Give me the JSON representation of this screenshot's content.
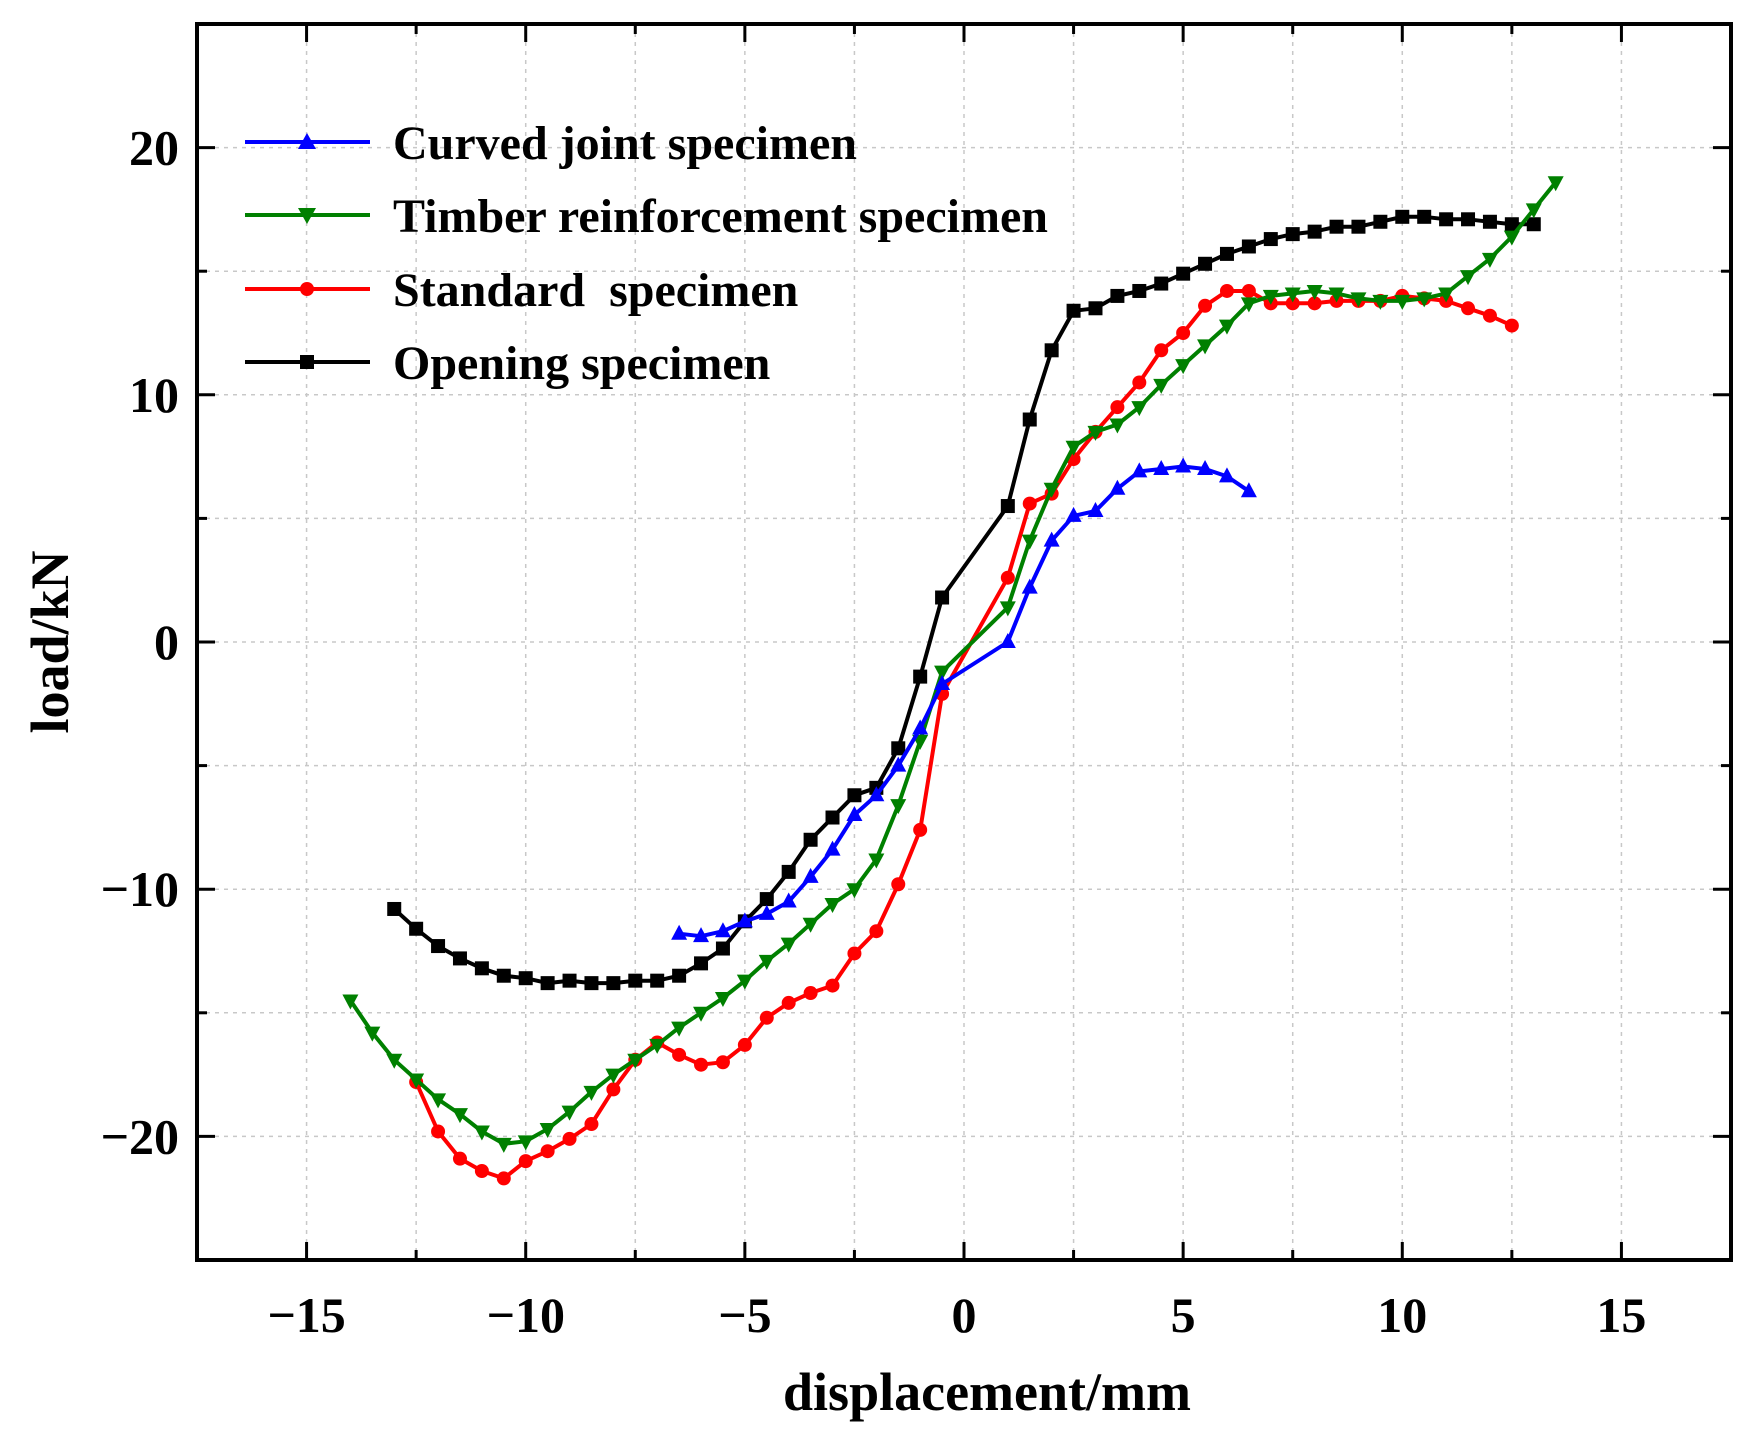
{
  "chart_data": {
    "type": "line",
    "title": "",
    "xlabel": "displacement/mm",
    "ylabel": "load/kN",
    "xlim": [
      -17.5,
      17.5
    ],
    "ylim": [
      -25,
      25
    ],
    "xticks": [
      -15,
      -10,
      -5,
      0,
      5,
      10,
      15
    ],
    "yticks": [
      -20,
      -10,
      0,
      10,
      20
    ],
    "xtick_labels": [
      "−15",
      "−10",
      "−5",
      "0",
      "5",
      "10",
      "15"
    ],
    "ytick_labels": [
      "−20",
      "−10",
      "0",
      "10",
      "20"
    ],
    "grid": true,
    "legend_position": "top-left",
    "series": [
      {
        "name": "Curved joint specimen",
        "color": "#0000ff",
        "marker": "triangle-up",
        "x": [
          -6.5,
          -6.0,
          -5.5,
          -5.0,
          -4.5,
          -4.0,
          -3.5,
          -3.0,
          -2.5,
          -2.0,
          -1.5,
          -1.0,
          -0.5,
          1.0,
          1.5,
          2.0,
          2.5,
          3.0,
          3.5,
          4.0,
          4.5,
          5.0,
          5.5,
          6.0,
          6.5
        ],
        "y": [
          -11.8,
          -11.9,
          -11.7,
          -11.3,
          -11.0,
          -10.5,
          -9.5,
          -8.4,
          -7.0,
          -6.2,
          -5.0,
          -3.5,
          -1.7,
          0.0,
          2.2,
          4.1,
          5.1,
          5.3,
          6.2,
          6.9,
          7.0,
          7.1,
          7.0,
          6.7,
          6.1
        ]
      },
      {
        "name": "Timber reinforcement specimen",
        "color": "#008000",
        "marker": "triangle-down",
        "x": [
          -14.0,
          -13.5,
          -13.0,
          -12.5,
          -12.0,
          -11.5,
          -11.0,
          -10.5,
          -10.0,
          -9.5,
          -9.0,
          -8.5,
          -8.0,
          -7.5,
          -7.0,
          -6.5,
          -6.0,
          -5.5,
          -5.0,
          -4.5,
          -4.0,
          -3.5,
          -3.0,
          -2.5,
          -2.0,
          -1.5,
          -1.0,
          -0.5,
          1.0,
          1.5,
          2.0,
          2.5,
          3.0,
          3.5,
          4.0,
          4.5,
          5.0,
          5.5,
          6.0,
          6.5,
          7.0,
          7.5,
          8.0,
          8.5,
          9.0,
          9.5,
          10.0,
          10.5,
          11.0,
          11.5,
          12.0,
          12.5,
          13.0,
          13.5
        ],
        "y": [
          -14.5,
          -15.8,
          -16.9,
          -17.7,
          -18.5,
          -19.1,
          -19.8,
          -20.3,
          -20.2,
          -19.7,
          -19.0,
          -18.2,
          -17.5,
          -16.9,
          -16.3,
          -15.6,
          -15.0,
          -14.4,
          -13.7,
          -12.9,
          -12.2,
          -11.4,
          -10.6,
          -10.0,
          -8.8,
          -6.6,
          -4.0,
          -1.2,
          1.4,
          4.1,
          6.2,
          7.9,
          8.5,
          8.8,
          9.5,
          10.4,
          11.2,
          12.0,
          12.8,
          13.7,
          14.0,
          14.1,
          14.2,
          14.1,
          13.9,
          13.8,
          13.8,
          13.9,
          14.1,
          14.8,
          15.5,
          16.4,
          17.5,
          18.6
        ]
      },
      {
        "name": "Standard  specimen",
        "color": "#ff0000",
        "marker": "circle",
        "x": [
          -12.5,
          -12.0,
          -11.5,
          -11.0,
          -10.5,
          -10.0,
          -9.5,
          -9.0,
          -8.5,
          -8.0,
          -7.5,
          -7.0,
          -6.5,
          -6.0,
          -5.5,
          -5.0,
          -4.5,
          -4.0,
          -3.5,
          -3.0,
          -2.5,
          -2.0,
          -1.5,
          -1.0,
          -0.5,
          1.0,
          1.5,
          2.0,
          2.5,
          3.0,
          3.5,
          4.0,
          4.5,
          5.0,
          5.5,
          6.0,
          6.5,
          7.0,
          7.5,
          8.0,
          8.5,
          9.0,
          9.5,
          10.0,
          10.5,
          11.0,
          11.5,
          12.0,
          12.5
        ],
        "y": [
          -17.8,
          -19.8,
          -20.9,
          -21.4,
          -21.7,
          -21.0,
          -20.6,
          -20.1,
          -19.5,
          -18.1,
          -16.9,
          -16.2,
          -16.7,
          -17.1,
          -17.0,
          -16.3,
          -15.2,
          -14.6,
          -14.2,
          -13.9,
          -12.6,
          -11.7,
          -9.8,
          -7.6,
          -2.1,
          2.6,
          5.6,
          6.0,
          7.4,
          8.5,
          9.5,
          10.5,
          11.8,
          12.5,
          13.6,
          14.2,
          14.2,
          13.7,
          13.7,
          13.7,
          13.8,
          13.8,
          13.8,
          14.0,
          13.9,
          13.8,
          13.5,
          13.2,
          12.8
        ]
      },
      {
        "name": "Opening specimen",
        "color": "#000000",
        "marker": "square",
        "x": [
          -13.0,
          -12.5,
          -12.0,
          -11.5,
          -11.0,
          -10.5,
          -10.0,
          -9.5,
          -9.0,
          -8.5,
          -8.0,
          -7.5,
          -7.0,
          -6.5,
          -6.0,
          -5.5,
          -5.0,
          -4.5,
          -4.0,
          -3.5,
          -3.0,
          -2.5,
          -2.0,
          -1.5,
          -1.0,
          -0.5,
          1.0,
          1.5,
          2.0,
          2.5,
          3.0,
          3.5,
          4.0,
          4.5,
          5.0,
          5.5,
          6.0,
          6.5,
          7.0,
          7.5,
          8.0,
          8.5,
          9.0,
          9.5,
          10.0,
          10.5,
          11.0,
          11.5,
          12.0,
          12.5,
          13.0
        ],
        "y": [
          -10.8,
          -11.6,
          -12.3,
          -12.8,
          -13.2,
          -13.5,
          -13.6,
          -13.8,
          -13.7,
          -13.8,
          -13.8,
          -13.7,
          -13.7,
          -13.5,
          -13.0,
          -12.4,
          -11.3,
          -10.4,
          -9.3,
          -8.0,
          -7.1,
          -6.2,
          -5.9,
          -4.3,
          -1.4,
          1.8,
          5.5,
          9.0,
          11.8,
          13.4,
          13.5,
          14.0,
          14.2,
          14.5,
          14.9,
          15.3,
          15.7,
          16.0,
          16.3,
          16.5,
          16.6,
          16.8,
          16.8,
          17.0,
          17.2,
          17.2,
          17.1,
          17.1,
          17.0,
          16.9,
          16.9
        ]
      }
    ]
  }
}
